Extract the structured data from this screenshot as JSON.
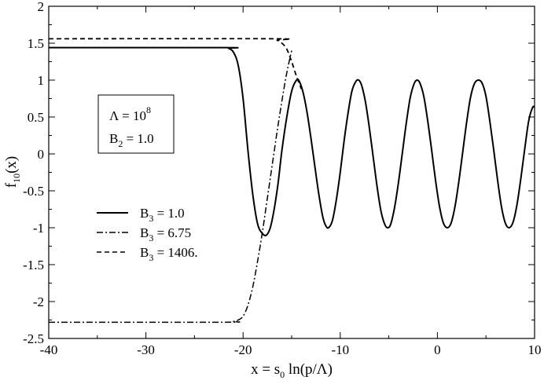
{
  "chart_data": {
    "type": "line",
    "xlabel": {
      "base": "x = s",
      "sub": "0",
      "rest": " ln(p/Λ)"
    },
    "ylabel": {
      "base": "f",
      "sub": "10",
      "rest": "(x)"
    },
    "xlim": [
      -40,
      10
    ],
    "ylim": [
      -2.5,
      2
    ],
    "xticks": [
      -40,
      -30,
      -20,
      -10,
      0,
      10
    ],
    "yticks": [
      -2.5,
      -2,
      -1.5,
      -1,
      -0.5,
      0,
      0.5,
      1,
      1.5,
      2
    ],
    "ytick_labels": [
      "-2.5",
      "-2",
      "-1.5",
      "-1",
      "-0.5",
      "0",
      "0.5",
      "1",
      "1.5",
      "2"
    ],
    "grid": false,
    "legend_position": "left-middle",
    "annotation": {
      "lambda": {
        "base": "Λ = 10",
        "sup": "8"
      },
      "b2": {
        "base": "B",
        "sub": "2",
        "rest": " = 1.0"
      }
    },
    "series": [
      {
        "name": {
          "base": "B",
          "sub": "3",
          "rest": " = 1.0"
        },
        "style": "solid",
        "x": [
          -40,
          -22,
          -21.5,
          -21,
          -20.5,
          -20,
          -19.5,
          -19,
          -18.5,
          -18,
          -17.6,
          -17.2,
          -16.8,
          -16.4,
          -16,
          -15.5,
          -15,
          -14.5,
          -14.2,
          -13.8,
          -13.4,
          -13,
          -12.6,
          -12.2,
          -11.8,
          -11.5,
          -11.2,
          -10.8,
          -10.4,
          -10,
          -9.6,
          -9.2,
          -8.8,
          -8.4,
          -8.1,
          -7.8,
          -7.4,
          -7,
          -6.6,
          -6.2,
          -5.8,
          -5.4,
          -5.1,
          -4.8,
          -4.4,
          -4,
          -3.6,
          -3.2,
          -2.8,
          -2.4,
          -2.1,
          -1.8,
          -1.4,
          -1,
          -0.6,
          -0.2,
          0.2,
          0.6,
          1.0,
          1.4,
          1.8,
          2.2,
          2.6,
          3.0,
          3.4,
          3.8,
          4.2,
          4.6,
          5.0,
          5.4,
          5.8,
          6.2,
          6.6,
          7.0,
          7.4,
          7.8,
          8.2,
          8.6,
          9.0,
          9.4,
          9.8,
          10
        ],
        "y": [
          1.44,
          1.44,
          1.43,
          1.38,
          1.2,
          0.75,
          0.05,
          -0.55,
          -0.95,
          -1.08,
          -1.1,
          -1.0,
          -0.75,
          -0.4,
          0.05,
          0.5,
          0.85,
          1.0,
          0.98,
          0.82,
          0.55,
          0.2,
          -0.18,
          -0.55,
          -0.85,
          -0.97,
          -1.0,
          -0.9,
          -0.62,
          -0.25,
          0.18,
          0.55,
          0.85,
          0.98,
          1.0,
          0.93,
          0.7,
          0.35,
          -0.05,
          -0.45,
          -0.78,
          -0.96,
          -1.0,
          -0.95,
          -0.72,
          -0.38,
          0.02,
          0.42,
          0.76,
          0.95,
          1.0,
          0.96,
          0.78,
          0.45,
          0.06,
          -0.35,
          -0.7,
          -0.93,
          -1.0,
          -0.94,
          -0.72,
          -0.38,
          0.02,
          0.42,
          0.76,
          0.95,
          1.0,
          0.96,
          0.78,
          0.44,
          0.05,
          -0.36,
          -0.72,
          -0.94,
          -1.0,
          -0.92,
          -0.68,
          -0.32,
          0.08,
          0.45,
          0.63,
          0.63
        ]
      },
      {
        "name": {
          "base": "B",
          "sub": "3",
          "rest": " = 6.75"
        },
        "style": "dash-dot",
        "x": [
          -40,
          -22,
          -21,
          -20.5,
          -20,
          -19.5,
          -19,
          -18.5,
          -18,
          -17.5,
          -17,
          -16.5,
          -16,
          -15.5,
          -15
        ],
        "y": [
          -2.28,
          -2.28,
          -2.27,
          -2.25,
          -2.2,
          -2.05,
          -1.8,
          -1.45,
          -1.05,
          -0.6,
          -0.15,
          0.3,
          0.72,
          1.1,
          1.4
        ]
      },
      {
        "name": {
          "base": "B",
          "sub": "3",
          "rest": " = 1406."
        },
        "style": "dashed",
        "x": [
          -40,
          -17,
          -16.5,
          -16,
          -15.5,
          -15,
          -14.5,
          -14
        ],
        "y": [
          1.56,
          1.56,
          1.54,
          1.5,
          1.42,
          1.25,
          1.05,
          0.88
        ]
      }
    ]
  }
}
